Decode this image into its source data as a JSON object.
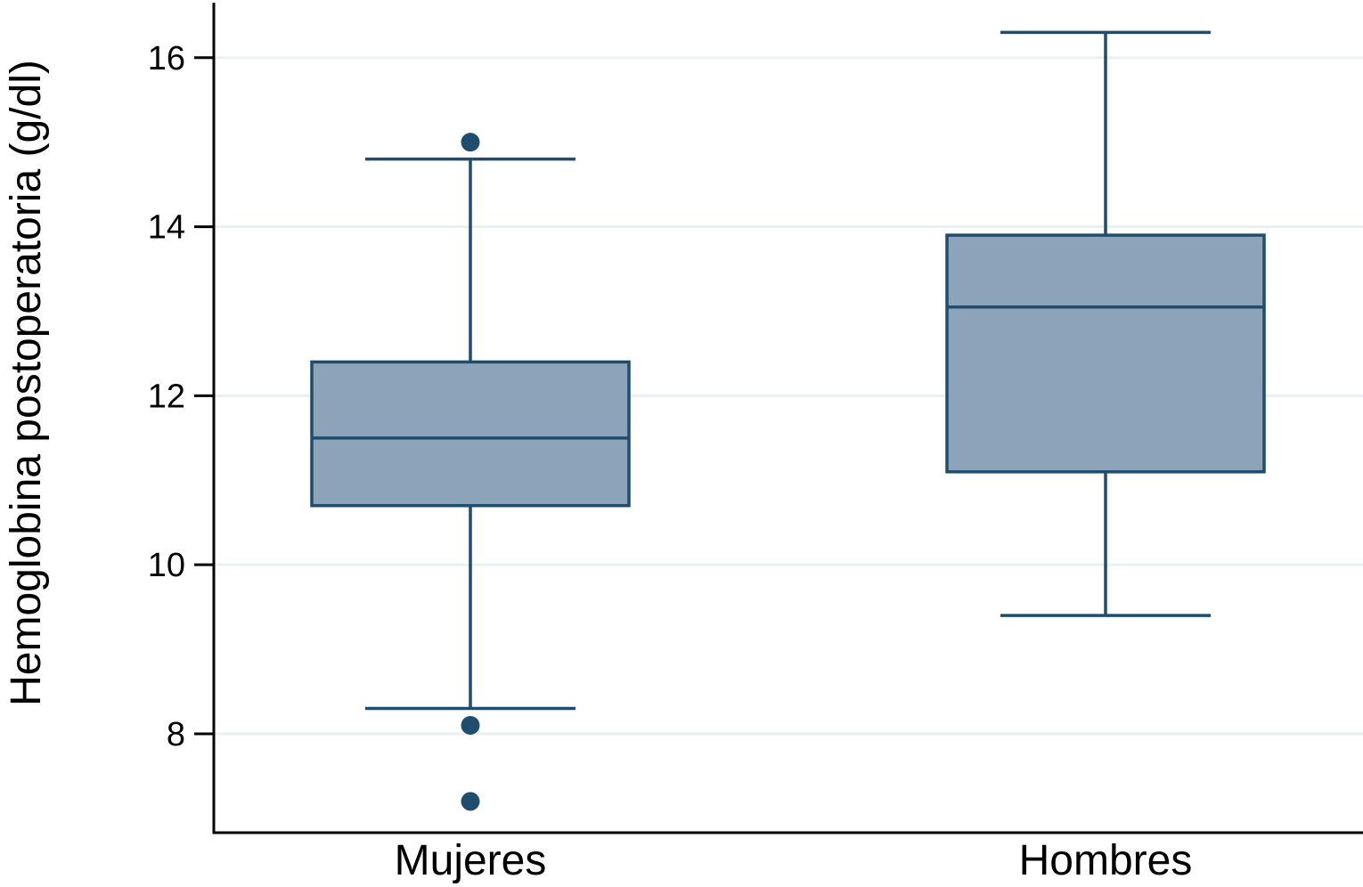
{
  "chart_data": {
    "type": "box",
    "title": "",
    "ylabel": "Hemoglobina postoperatoria (g/dl)",
    "xlabel": "",
    "categories": [
      "Mujeres",
      "Hombres"
    ],
    "yticks": [
      "8",
      "10",
      "12",
      "14",
      "16"
    ],
    "ytick_values": [
      8,
      10,
      12,
      14,
      16
    ],
    "ylim": [
      6.83,
      16.63
    ],
    "grid": true,
    "legend": "none",
    "series": [
      {
        "name": "Mujeres",
        "whisker_low": 8.3,
        "q1": 10.7,
        "median": 11.5,
        "q3": 12.4,
        "whisker_high": 14.8,
        "outliers": [
          15.0,
          8.1,
          7.2
        ]
      },
      {
        "name": "Hombres",
        "whisker_low": 9.4,
        "q1": 11.1,
        "median": 13.05,
        "q3": 13.9,
        "whisker_high": 16.3,
        "outliers": []
      }
    ],
    "colors": {
      "box_fill": "#8ca3b9",
      "box_line": "#1e4d6e",
      "outlier": "#1e4d6e",
      "grid_line": "#e9f0f2",
      "axis": "#000000",
      "background": "#ffffff"
    }
  }
}
